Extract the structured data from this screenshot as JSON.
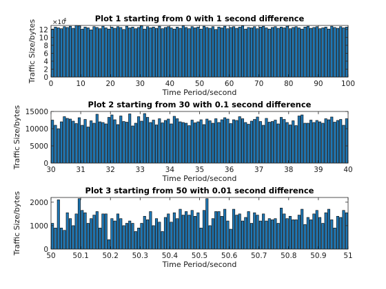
{
  "bar_color": "#1f77b4",
  "chart_data": [
    {
      "type": "bar",
      "title": "Plot 1 starting from 0 with 1 second difference",
      "xlabel": "Time Period/second",
      "ylabel": "Traffic Size/bytes",
      "xlim": [
        0,
        100
      ],
      "ylim": [
        0,
        130000
      ],
      "xticks": [
        0,
        10,
        20,
        30,
        40,
        50,
        60,
        70,
        80,
        90,
        100
      ],
      "yticks": [
        0,
        20000,
        40000,
        60000,
        80000,
        100000,
        120000
      ],
      "ytick_labels": [
        "0",
        "2",
        "4",
        "6",
        "8",
        "10",
        "12"
      ],
      "y_multiplier": "×10",
      "y_multiplier_exp": "4",
      "grid": false,
      "x_start": 0.5,
      "x_step": 1,
      "values": [
        121000,
        126000,
        124000,
        122000,
        127000,
        125000,
        128000,
        123000,
        130000,
        129000,
        121000,
        126000,
        124000,
        119000,
        127000,
        125000,
        122000,
        128000,
        124000,
        121000,
        126000,
        123000,
        127000,
        125000,
        120000,
        128000,
        124000,
        126000,
        122000,
        125000,
        129000,
        121000,
        127000,
        124000,
        126000,
        123000,
        128000,
        122000,
        125000,
        127000,
        124000,
        121000,
        126000,
        123000,
        129000,
        125000,
        122000,
        127000,
        124000,
        126000,
        121000,
        128000,
        125000,
        123000,
        127000,
        120000,
        126000,
        124000,
        128000,
        122000,
        125000,
        127000,
        123000,
        126000,
        129000,
        121000,
        125000,
        124000,
        127000,
        122000,
        126000,
        128000,
        124000,
        121000,
        125000,
        127000,
        123000,
        126000,
        124000,
        128000,
        122000,
        125000,
        127000,
        124000,
        121000,
        126000,
        128000,
        123000,
        125000,
        127000,
        122000,
        124000,
        126000,
        121000,
        128000,
        125000,
        123000,
        127000,
        124000,
        126000
      ]
    },
    {
      "type": "bar",
      "title": "Plot 2 starting from 30 with 0.1 second difference",
      "xlabel": "Time Period/second",
      "ylabel": "Traffic Size/bytes",
      "xlim": [
        30,
        40
      ],
      "ylim": [
        0,
        15000
      ],
      "xticks": [
        30,
        31,
        32,
        33,
        34,
        35,
        36,
        37,
        38,
        39,
        40
      ],
      "yticks": [
        0,
        5000,
        10000,
        15000
      ],
      "ytick_labels": [
        "0",
        "5000",
        "10000",
        "15000"
      ],
      "grid": false,
      "x_start": 30.05,
      "x_step": 0.1,
      "values": [
        12500,
        11000,
        10000,
        12000,
        13500,
        13000,
        12800,
        12200,
        11500,
        13200,
        11000,
        12700,
        10500,
        12300,
        11600,
        14200,
        12000,
        11800,
        11400,
        13300,
        14000,
        12600,
        11200,
        13700,
        12100,
        11900,
        14300,
        10800,
        11600,
        13500,
        12200,
        14400,
        13300,
        11800,
        12500,
        11100,
        12900,
        11700,
        12400,
        12800,
        11400,
        13600,
        12900,
        12000,
        11800,
        11600,
        10900,
        12500,
        11700,
        12000,
        12600,
        11200,
        12800,
        12300,
        11600,
        12900,
        11800,
        12600,
        13200,
        12800,
        11500,
        12600,
        12400,
        13500,
        12900,
        11800,
        11300,
        12200,
        12700,
        13400,
        12100,
        11000,
        13000,
        11900,
        12100,
        12500,
        11400,
        13300,
        12700,
        11800,
        11100,
        12300,
        10900,
        13700,
        14000,
        11600,
        11600,
        12500,
        11800,
        12400,
        12000,
        11600,
        12900,
        12600,
        13400,
        11900,
        12400,
        12700,
        11000,
        12900
      ]
    },
    {
      "type": "bar",
      "title": "Plot 3 starting from 50 with 0.01 second difference",
      "xlabel": "Time Period/second",
      "ylabel": "Traffic Size/bytes",
      "xlim": [
        50,
        51
      ],
      "ylim": [
        0,
        2200
      ],
      "xticks": [
        50,
        50.1,
        50.2,
        50.3,
        50.4,
        50.5,
        50.6,
        50.7,
        50.8,
        50.9,
        51
      ],
      "yticks": [
        0,
        1000,
        2000
      ],
      "ytick_labels": [
        "0",
        "1000",
        "2000"
      ],
      "grid": false,
      "x_start": 50.005,
      "x_step": 0.01,
      "values": [
        1100,
        900,
        2100,
        900,
        800,
        1550,
        1300,
        1000,
        1500,
        2150,
        1650,
        1550,
        1100,
        1300,
        1450,
        1600,
        900,
        1500,
        1500,
        400,
        1300,
        1200,
        1500,
        1300,
        1000,
        1100,
        1200,
        1100,
        750,
        900,
        1100,
        1400,
        1250,
        1600,
        1000,
        1300,
        1150,
        750,
        1350,
        1500,
        1150,
        1550,
        1300,
        1700,
        1450,
        1600,
        1450,
        1650,
        1400,
        1550,
        900,
        1650,
        2150,
        1000,
        1300,
        1600,
        1600,
        1400,
        1700,
        1200,
        850,
        1700,
        1450,
        1500,
        1200,
        1350,
        1600,
        1100,
        1550,
        1450,
        1200,
        1500,
        1200,
        1300,
        1250,
        1300,
        1100,
        1750,
        1500,
        1300,
        1400,
        1250,
        1250,
        1450,
        1700,
        1050,
        1350,
        1250,
        1500,
        1650,
        1350,
        1100,
        1550,
        1700,
        1250,
        900,
        1400,
        1350,
        1650,
        1550
      ]
    }
  ]
}
